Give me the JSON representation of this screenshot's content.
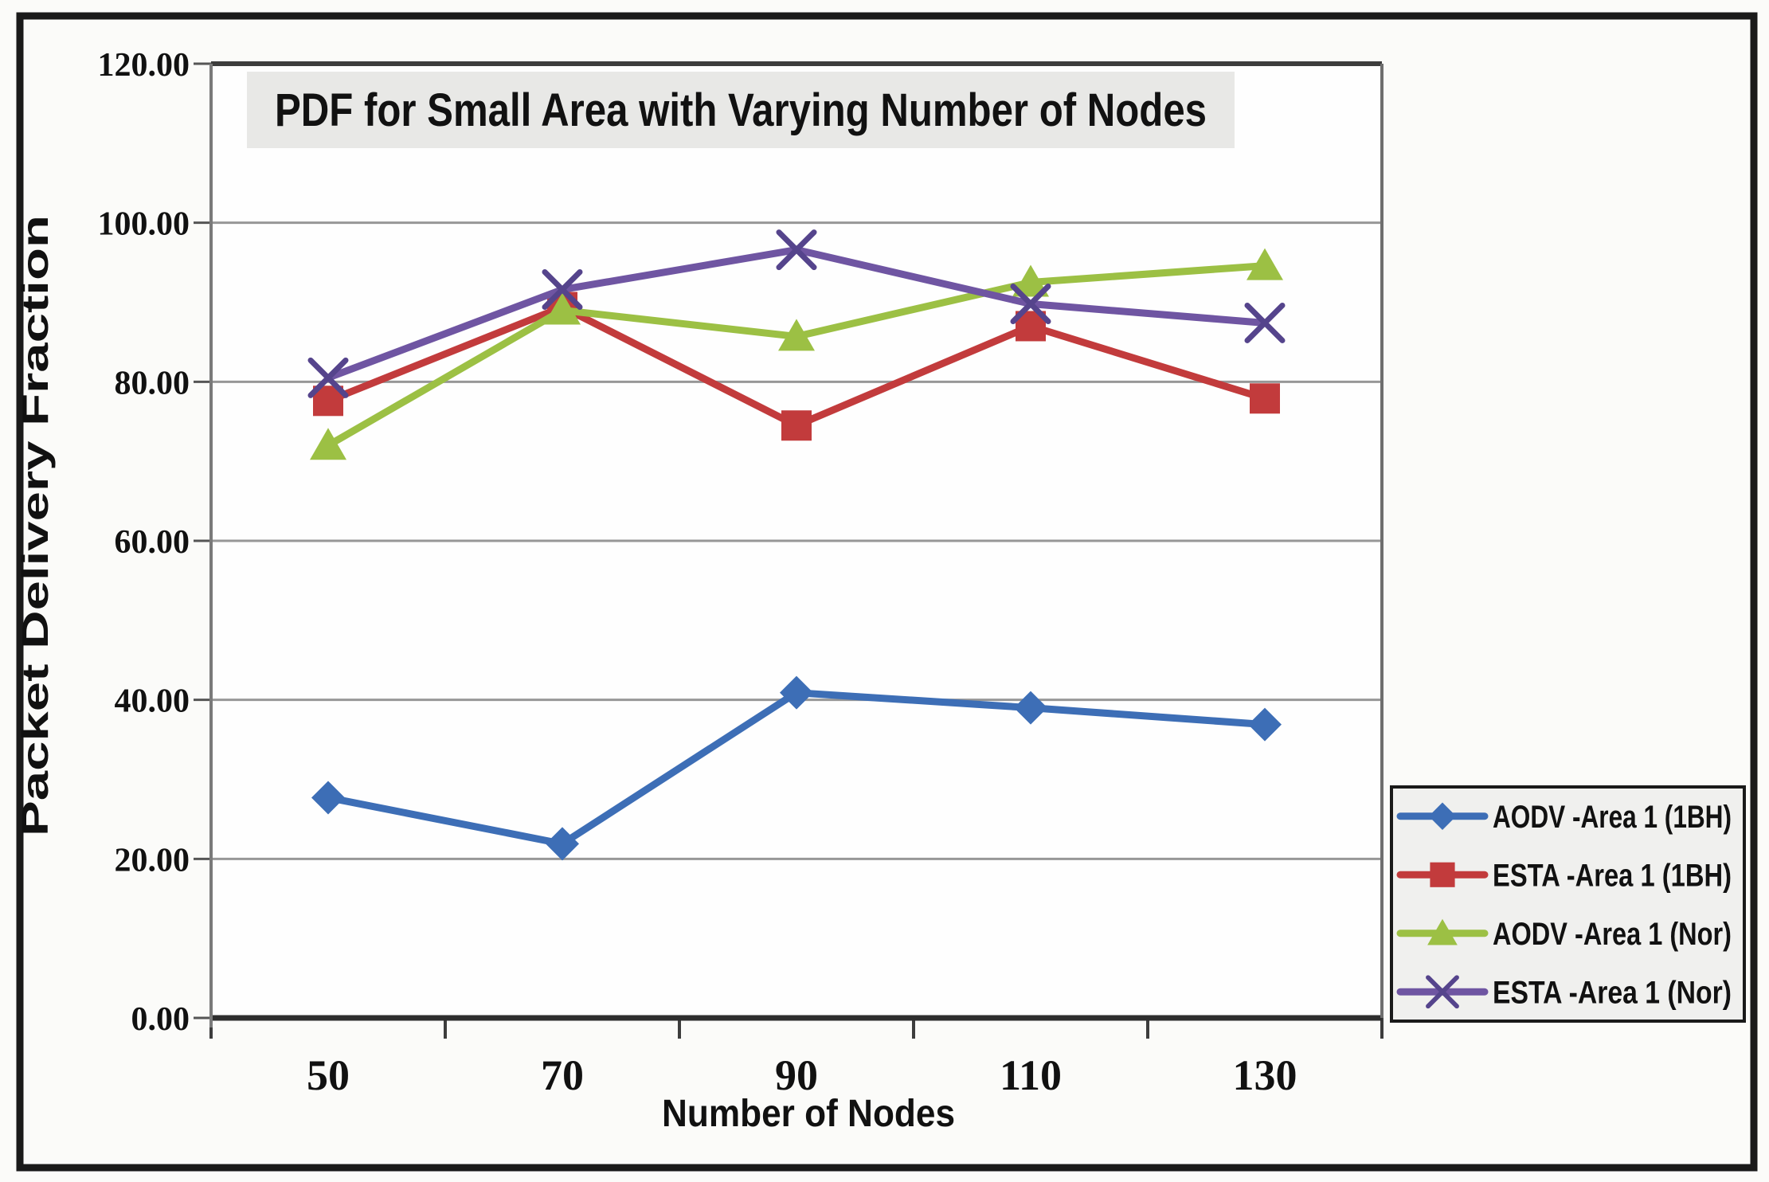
{
  "figure": {
    "background": "#fbfbf9",
    "border_color": "#1a1a1a",
    "plot_background": "#fefefe",
    "title_band_color": "#e8e8e6",
    "gridline_color": "#979797",
    "legend_fill": "#f0f0ee"
  },
  "chart_data": {
    "type": "line",
    "title": "PDF for Small Area with Varying Number of Nodes",
    "xlabel": "Number of Nodes",
    "ylabel": "Packet  Delivery  Fraction",
    "categories": [
      "50",
      "70",
      "90",
      "110",
      "130"
    ],
    "ylim": [
      0,
      120
    ],
    "ytick_step": 20,
    "ytick_labels": [
      "0.00",
      "20.00",
      "40.00",
      "60.00",
      "80.00",
      "100.00",
      "120.00"
    ],
    "grid": true,
    "legend_position": "right-bottom",
    "series": [
      {
        "name": "AODV -Area 1 (1BH)",
        "marker": "diamond",
        "color": "#3d6eb6",
        "values": [
          27.7,
          21.9,
          40.9,
          39.0,
          36.9
        ]
      },
      {
        "name": "ESTA -Area 1 (1BH)",
        "marker": "square",
        "color": "#c23b3c",
        "values": [
          77.6,
          89.4,
          74.5,
          87.0,
          77.9
        ]
      },
      {
        "name": "AODV -Area 1 (Nor)",
        "marker": "triangle",
        "color": "#9cc044",
        "values": [
          72.0,
          89.0,
          85.7,
          92.5,
          94.6
        ]
      },
      {
        "name": "ESTA -Area 1 (Nor)",
        "marker": "x",
        "color": "#6f55a2",
        "marker_color": "#55448c",
        "values": [
          80.5,
          91.6,
          96.6,
          89.8,
          87.4
        ]
      }
    ]
  }
}
